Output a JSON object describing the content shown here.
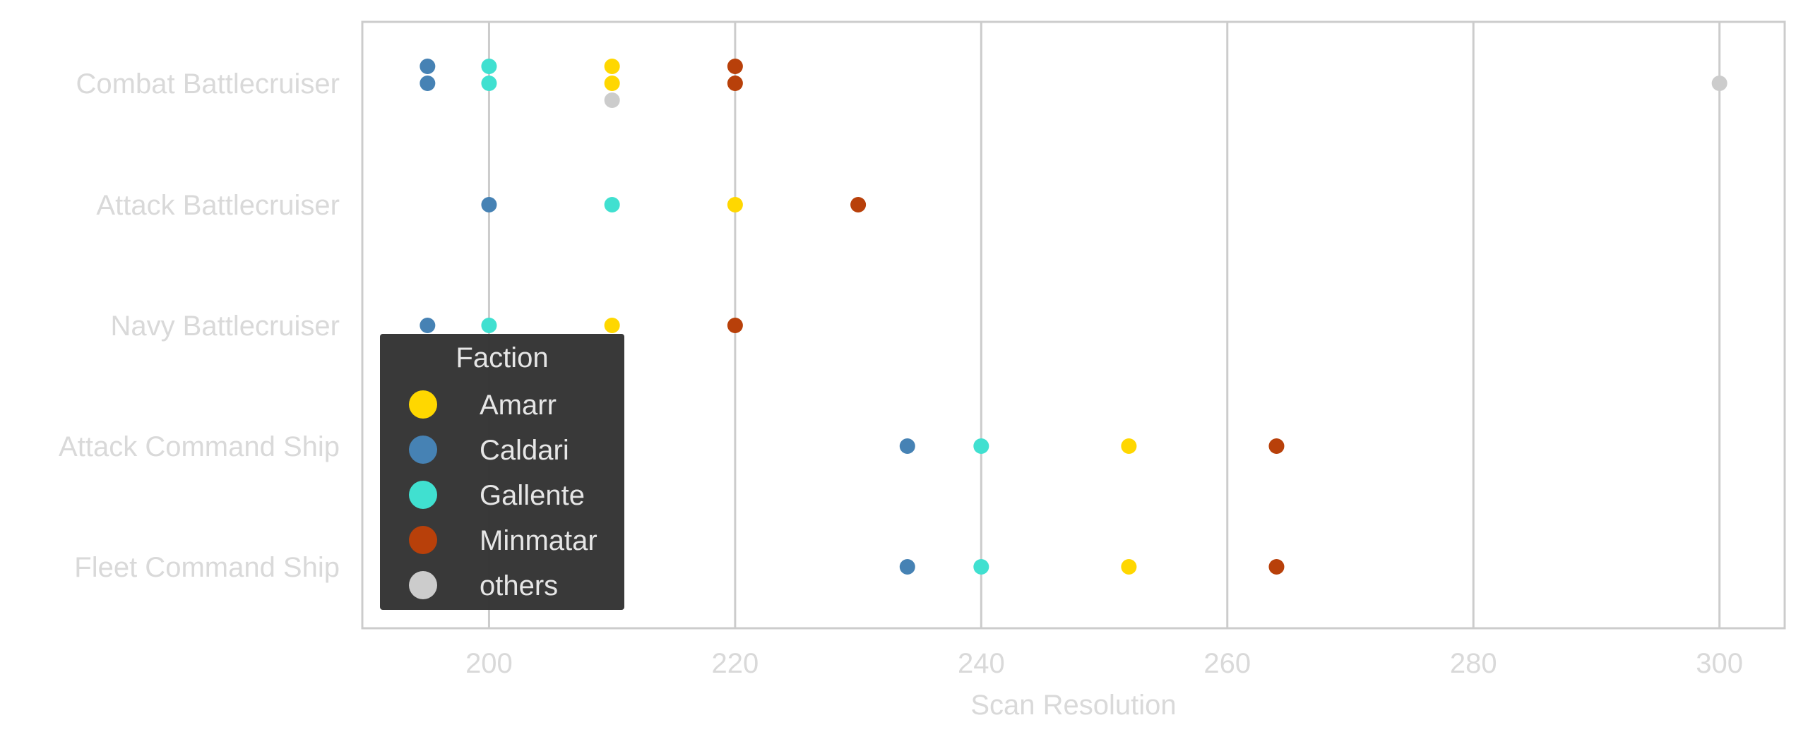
{
  "chart_data": {
    "type": "scatter",
    "title": "",
    "xlabel": "Scan Resolution",
    "ylabel": "",
    "xlim": [
      189.7,
      305.3
    ],
    "x_ticks": [
      200,
      220,
      240,
      260,
      280,
      300
    ],
    "categories": [
      "Combat Battlecruiser",
      "Attack Battlecruiser",
      "Navy Battlecruiser",
      "Attack Command Ship",
      "Fleet Command Ship"
    ],
    "grid": "vertical",
    "legend": {
      "title": "Faction",
      "placement": "lower-left",
      "entries": [
        {
          "name": "Amarr",
          "color": "#FFD700"
        },
        {
          "name": "Caldari",
          "color": "#4682B4"
        },
        {
          "name": "Gallente",
          "color": "#40E0D0"
        },
        {
          "name": "Minmatar",
          "color": "#B8400A"
        },
        {
          "name": "others",
          "color": "#CCCCCC"
        }
      ]
    },
    "series": [
      {
        "name": "Amarr",
        "color": "#FFD700",
        "points": [
          {
            "x": 210,
            "category": "Combat Battlecruiser"
          },
          {
            "x": 210,
            "category": "Combat Battlecruiser"
          },
          {
            "x": 220,
            "category": "Attack Battlecruiser"
          },
          {
            "x": 210,
            "category": "Navy Battlecruiser"
          },
          {
            "x": 252,
            "category": "Attack Command Ship"
          },
          {
            "x": 252,
            "category": "Fleet Command Ship"
          }
        ]
      },
      {
        "name": "Caldari",
        "color": "#4682B4",
        "points": [
          {
            "x": 195,
            "category": "Combat Battlecruiser"
          },
          {
            "x": 195,
            "category": "Combat Battlecruiser"
          },
          {
            "x": 200,
            "category": "Attack Battlecruiser"
          },
          {
            "x": 195,
            "category": "Navy Battlecruiser"
          },
          {
            "x": 234,
            "category": "Attack Command Ship"
          },
          {
            "x": 234,
            "category": "Fleet Command Ship"
          }
        ]
      },
      {
        "name": "Gallente",
        "color": "#40E0D0",
        "points": [
          {
            "x": 200,
            "category": "Combat Battlecruiser"
          },
          {
            "x": 200,
            "category": "Combat Battlecruiser"
          },
          {
            "x": 210,
            "category": "Attack Battlecruiser"
          },
          {
            "x": 200,
            "category": "Navy Battlecruiser"
          },
          {
            "x": 240,
            "category": "Attack Command Ship"
          },
          {
            "x": 240,
            "category": "Fleet Command Ship"
          }
        ]
      },
      {
        "name": "Minmatar",
        "color": "#B8400A",
        "points": [
          {
            "x": 220,
            "category": "Combat Battlecruiser"
          },
          {
            "x": 220,
            "category": "Combat Battlecruiser"
          },
          {
            "x": 230,
            "category": "Attack Battlecruiser"
          },
          {
            "x": 220,
            "category": "Navy Battlecruiser"
          },
          {
            "x": 264,
            "category": "Attack Command Ship"
          },
          {
            "x": 264,
            "category": "Fleet Command Ship"
          }
        ]
      },
      {
        "name": "others",
        "color": "#CCCCCC",
        "points": [
          {
            "x": 210,
            "category": "Combat Battlecruiser"
          },
          {
            "x": 300,
            "category": "Combat Battlecruiser"
          }
        ]
      }
    ]
  }
}
